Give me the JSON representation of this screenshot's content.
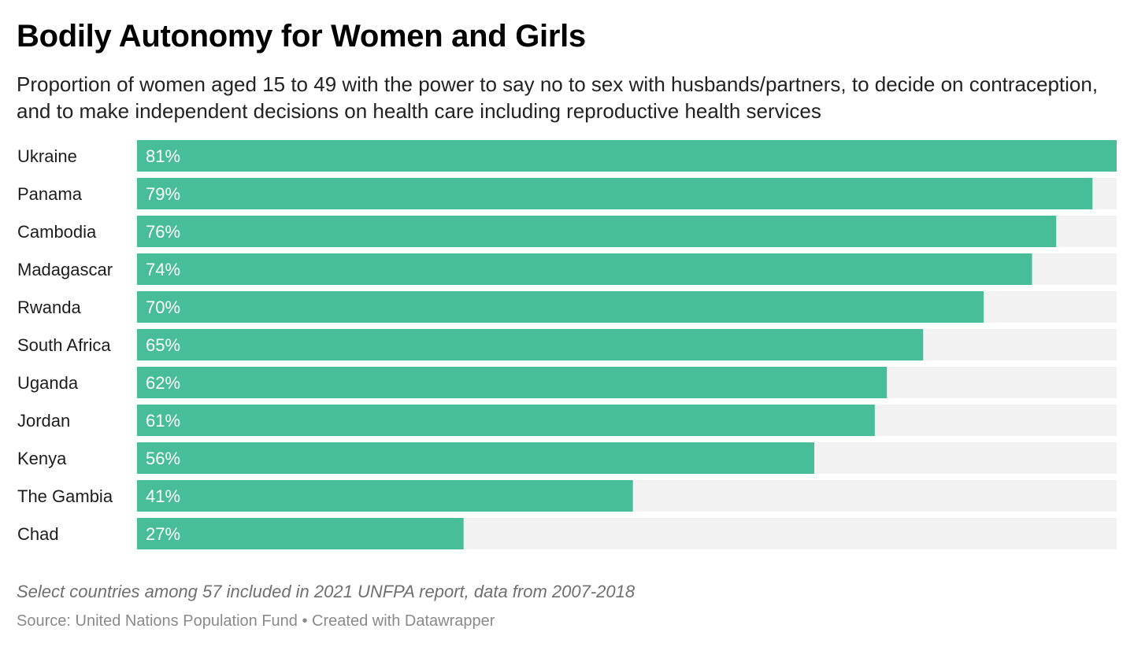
{
  "colors": {
    "bar": "#48bd99",
    "track": "#f2f2f2",
    "value_text": "#ffffff"
  },
  "chart_data": {
    "type": "bar",
    "orientation": "horizontal",
    "title": "Bodily Autonomy for Women and Girls",
    "subtitle": "Proportion of women aged 15 to 49 with the power to say no to sex with husbands/partners, to decide on contraception, and to make independent decisions on health care including reproductive health services",
    "categories": [
      "Ukraine",
      "Panama",
      "Cambodia",
      "Madagascar",
      "Rwanda",
      "South Africa",
      "Uganda",
      "Jordan",
      "Kenya",
      "The Gambia",
      "Chad"
    ],
    "values": [
      81,
      79,
      76,
      74,
      70,
      65,
      62,
      61,
      56,
      41,
      27
    ],
    "value_labels": [
      "81%",
      "79%",
      "76%",
      "74%",
      "70%",
      "65%",
      "62%",
      "61%",
      "56%",
      "41%",
      "27%"
    ],
    "xlim": [
      0,
      81
    ],
    "unit": "%",
    "grid": false,
    "legend": "none"
  },
  "footer": {
    "note": "Select countries among 57 included in 2021 UNFPA report, data from 2007-2018",
    "source_label": "Source:",
    "source_name": "United Nations Population Fund",
    "separator": "•",
    "credit": "Created with Datawrapper"
  }
}
